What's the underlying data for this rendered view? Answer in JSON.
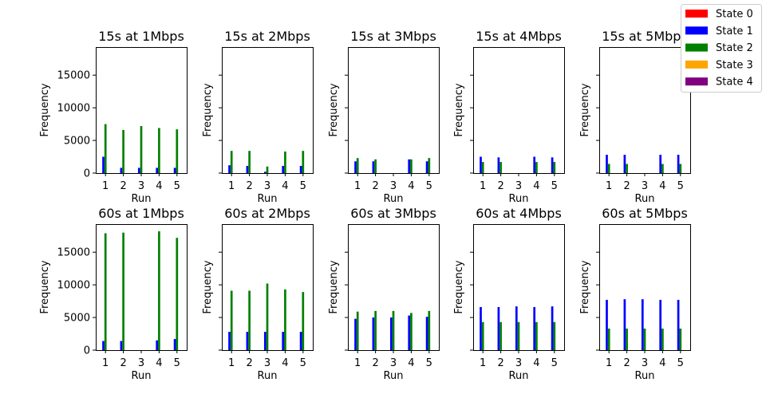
{
  "legend": {
    "placement": "upper-right",
    "entries": [
      {
        "label": "State 0",
        "color": "#ff0000"
      },
      {
        "label": "State 1",
        "color": "#0000ff"
      },
      {
        "label": "State 2",
        "color": "#008000"
      },
      {
        "label": "State 3",
        "color": "#ffa500"
      },
      {
        "label": "State 4",
        "color": "#800080"
      }
    ]
  },
  "chart_data": [
    {
      "type": "bar",
      "title": "15s at 1Mbps",
      "xlabel": "Run",
      "ylabel": "Frequency",
      "categories": [
        "1",
        "2",
        "3",
        "4",
        "5"
      ],
      "ylim": [
        0,
        19300
      ],
      "yticks": [
        0,
        5000,
        10000,
        15000
      ],
      "series": [
        {
          "name": "State 0",
          "values": [
            0,
            0,
            0,
            0,
            0
          ]
        },
        {
          "name": "State 1",
          "values": [
            2500,
            800,
            800,
            800,
            800
          ]
        },
        {
          "name": "State 2",
          "values": [
            7500,
            6600,
            7200,
            6900,
            6700
          ]
        },
        {
          "name": "State 3",
          "values": [
            0,
            0,
            0,
            0,
            0
          ]
        },
        {
          "name": "State 4",
          "values": [
            0,
            0,
            0,
            0,
            0
          ]
        }
      ]
    },
    {
      "type": "bar",
      "title": "15s at 2Mbps",
      "xlabel": "Run",
      "ylabel": "Frequency",
      "categories": [
        "1",
        "2",
        "3",
        "4",
        "5"
      ],
      "ylim": [
        0,
        19300
      ],
      "yticks": [
        0,
        5000,
        10000,
        15000
      ],
      "series": [
        {
          "name": "State 0",
          "values": [
            0,
            0,
            0,
            0,
            0
          ]
        },
        {
          "name": "State 1",
          "values": [
            1200,
            1100,
            200,
            1100,
            1100
          ]
        },
        {
          "name": "State 2",
          "values": [
            3400,
            3400,
            1000,
            3300,
            3400
          ]
        },
        {
          "name": "State 3",
          "values": [
            0,
            0,
            0,
            0,
            0
          ]
        },
        {
          "name": "State 4",
          "values": [
            0,
            0,
            0,
            0,
            0
          ]
        }
      ]
    },
    {
      "type": "bar",
      "title": "15s at 3Mbps",
      "xlabel": "Run",
      "ylabel": "Frequency",
      "categories": [
        "1",
        "2",
        "3",
        "4",
        "5"
      ],
      "ylim": [
        0,
        19300
      ],
      "yticks": [
        0,
        5000,
        10000,
        15000
      ],
      "series": [
        {
          "name": "State 0",
          "values": [
            0,
            0,
            0,
            0,
            0
          ]
        },
        {
          "name": "State 1",
          "values": [
            1800,
            1800,
            0,
            2100,
            1800
          ]
        },
        {
          "name": "State 2",
          "values": [
            2300,
            2100,
            0,
            2100,
            2300
          ]
        },
        {
          "name": "State 3",
          "values": [
            0,
            0,
            0,
            0,
            0
          ]
        },
        {
          "name": "State 4",
          "values": [
            0,
            0,
            0,
            0,
            0
          ]
        }
      ]
    },
    {
      "type": "bar",
      "title": "15s at 4Mbps",
      "xlabel": "Run",
      "ylabel": "Frequency",
      "categories": [
        "1",
        "2",
        "3",
        "4",
        "5"
      ],
      "ylim": [
        0,
        19300
      ],
      "yticks": [
        0,
        5000,
        10000,
        15000
      ],
      "series": [
        {
          "name": "State 0",
          "values": [
            0,
            0,
            0,
            0,
            0
          ]
        },
        {
          "name": "State 1",
          "values": [
            2500,
            2400,
            0,
            2500,
            2400
          ]
        },
        {
          "name": "State 2",
          "values": [
            1700,
            1700,
            0,
            1700,
            1700
          ]
        },
        {
          "name": "State 3",
          "values": [
            0,
            0,
            0,
            0,
            0
          ]
        },
        {
          "name": "State 4",
          "values": [
            0,
            0,
            0,
            0,
            0
          ]
        }
      ]
    },
    {
      "type": "bar",
      "title": "15s at 5Mbps",
      "xlabel": "Run",
      "ylabel": "Frequency",
      "categories": [
        "1",
        "2",
        "3",
        "4",
        "5"
      ],
      "ylim": [
        0,
        19300
      ],
      "yticks": [
        0,
        5000,
        10000,
        15000
      ],
      "series": [
        {
          "name": "State 0",
          "values": [
            0,
            0,
            0,
            0,
            0
          ]
        },
        {
          "name": "State 1",
          "values": [
            2800,
            2800,
            0,
            2800,
            2800
          ]
        },
        {
          "name": "State 2",
          "values": [
            1400,
            1400,
            0,
            1400,
            1400
          ]
        },
        {
          "name": "State 3",
          "values": [
            0,
            0,
            0,
            0,
            0
          ]
        },
        {
          "name": "State 4",
          "values": [
            0,
            0,
            0,
            0,
            0
          ]
        }
      ]
    },
    {
      "type": "bar",
      "title": "60s at 1Mbps",
      "xlabel": "Run",
      "ylabel": "Frequency",
      "categories": [
        "1",
        "2",
        "3",
        "4",
        "5"
      ],
      "ylim": [
        0,
        19300
      ],
      "yticks": [
        0,
        5000,
        10000,
        15000
      ],
      "series": [
        {
          "name": "State 0",
          "values": [
            0,
            0,
            0,
            0,
            0
          ]
        },
        {
          "name": "State 1",
          "values": [
            1400,
            1400,
            0,
            1500,
            1700
          ]
        },
        {
          "name": "State 2",
          "values": [
            17900,
            18000,
            0,
            18200,
            17200
          ]
        },
        {
          "name": "State 3",
          "values": [
            0,
            0,
            0,
            0,
            0
          ]
        },
        {
          "name": "State 4",
          "values": [
            0,
            0,
            0,
            0,
            0
          ]
        }
      ]
    },
    {
      "type": "bar",
      "title": "60s at 2Mbps",
      "xlabel": "Run",
      "ylabel": "Frequency",
      "categories": [
        "1",
        "2",
        "3",
        "4",
        "5"
      ],
      "ylim": [
        0,
        19300
      ],
      "yticks": [
        0,
        5000,
        10000,
        15000
      ],
      "series": [
        {
          "name": "State 0",
          "values": [
            0,
            0,
            0,
            0,
            0
          ]
        },
        {
          "name": "State 1",
          "values": [
            2800,
            2800,
            2800,
            2800,
            2800
          ]
        },
        {
          "name": "State 2",
          "values": [
            9100,
            9100,
            10200,
            9300,
            8900
          ]
        },
        {
          "name": "State 3",
          "values": [
            0,
            0,
            0,
            0,
            0
          ]
        },
        {
          "name": "State 4",
          "values": [
            0,
            0,
            0,
            0,
            0
          ]
        }
      ]
    },
    {
      "type": "bar",
      "title": "60s at 3Mbps",
      "xlabel": "Run",
      "ylabel": "Frequency",
      "categories": [
        "1",
        "2",
        "3",
        "4",
        "5"
      ],
      "ylim": [
        0,
        19300
      ],
      "yticks": [
        0,
        5000,
        10000,
        15000
      ],
      "series": [
        {
          "name": "State 0",
          "values": [
            0,
            0,
            0,
            0,
            0
          ]
        },
        {
          "name": "State 1",
          "values": [
            4800,
            5000,
            5000,
            5300,
            5100
          ]
        },
        {
          "name": "State 2",
          "values": [
            5900,
            6000,
            6000,
            5700,
            6000
          ]
        },
        {
          "name": "State 3",
          "values": [
            0,
            0,
            0,
            0,
            0
          ]
        },
        {
          "name": "State 4",
          "values": [
            0,
            0,
            0,
            0,
            0
          ]
        }
      ]
    },
    {
      "type": "bar",
      "title": "60s at 4Mbps",
      "xlabel": "Run",
      "ylabel": "Frequency",
      "categories": [
        "1",
        "2",
        "3",
        "4",
        "5"
      ],
      "ylim": [
        0,
        19300
      ],
      "yticks": [
        0,
        5000,
        10000,
        15000
      ],
      "series": [
        {
          "name": "State 0",
          "values": [
            0,
            0,
            0,
            0,
            0
          ]
        },
        {
          "name": "State 1",
          "values": [
            6600,
            6600,
            6700,
            6600,
            6700
          ]
        },
        {
          "name": "State 2",
          "values": [
            4300,
            4300,
            4300,
            4300,
            4300
          ]
        },
        {
          "name": "State 3",
          "values": [
            0,
            0,
            0,
            0,
            0
          ]
        },
        {
          "name": "State 4",
          "values": [
            0,
            0,
            0,
            0,
            0
          ]
        }
      ]
    },
    {
      "type": "bar",
      "title": "60s at 5Mbps",
      "xlabel": "Run",
      "ylabel": "Frequency",
      "categories": [
        "1",
        "2",
        "3",
        "4",
        "5"
      ],
      "ylim": [
        0,
        19300
      ],
      "yticks": [
        0,
        5000,
        10000,
        15000
      ],
      "series": [
        {
          "name": "State 0",
          "values": [
            0,
            0,
            0,
            0,
            0
          ]
        },
        {
          "name": "State 1",
          "values": [
            7700,
            7800,
            7800,
            7700,
            7700
          ]
        },
        {
          "name": "State 2",
          "values": [
            3300,
            3300,
            3300,
            3300,
            3300
          ]
        },
        {
          "name": "State 3",
          "values": [
            0,
            0,
            0,
            0,
            0
          ]
        },
        {
          "name": "State 4",
          "values": [
            0,
            0,
            0,
            0,
            0
          ]
        }
      ]
    }
  ]
}
